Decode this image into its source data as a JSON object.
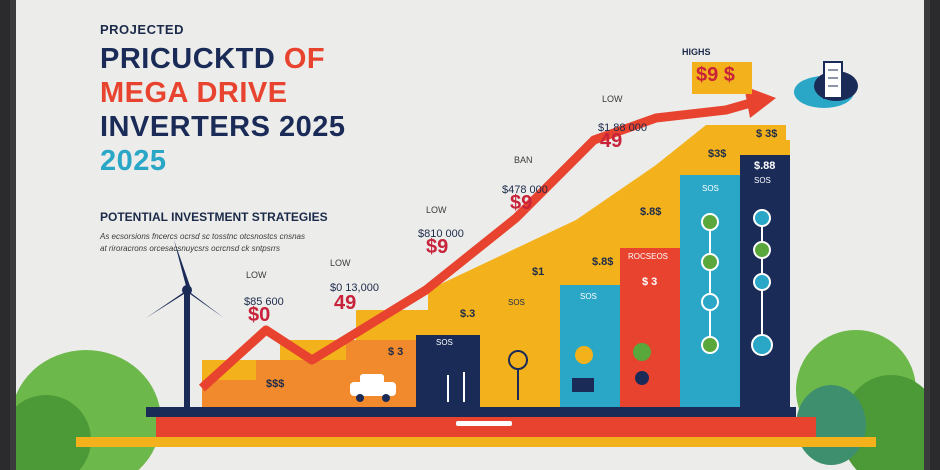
{
  "title": {
    "pre": "PROJECTED",
    "line1_a": "PRICUCKTD",
    "line1_b": "OF",
    "line2": "MEGA DRIVE",
    "line3_a": "INVERTERS",
    "line3_b": "2025",
    "line4": "2025"
  },
  "strategies": {
    "heading": "POTENTIAL INVESTMENT STRATEGIES",
    "sub1": "As ecsorsions fncercs ocrsd sc tosstnc otcsnostcs cnsnas",
    "sub2": "at riroracrons orcesacsnuycsrs ocrcnsd ck sntpsrrs"
  },
  "annotations": {
    "low1": "LOW",
    "price1": "$85 600",
    "big1": "$0",
    "low2": "LOW",
    "price2": "$0 13,000",
    "big2": "49",
    "low3": "LOW",
    "price3": "$810 000",
    "big3": "$9",
    "low4": "BAN",
    "price4": "$478 000",
    "big4": "$9",
    "low5": "LOW",
    "price5": "$1 88 000",
    "big5": "49",
    "highs": "HIGHS",
    "highs_price": "$9 $",
    "bar_amounts": [
      "$$$",
      "$ 3",
      "$.3",
      "$1",
      "$.8$",
      "$.8$",
      "$ 3",
      "$3$",
      "$.88",
      "$ 3$"
    ],
    "bar_labels": [
      "ROCSEOS",
      "SOS",
      "SOS",
      "SOS",
      "SOS",
      "SOS"
    ]
  },
  "colors": {
    "navy": "#1a2b57",
    "red": "#e8432f",
    "yellow": "#f3b21b",
    "teal": "#2aa6c6",
    "green": "#5aa83c"
  }
}
